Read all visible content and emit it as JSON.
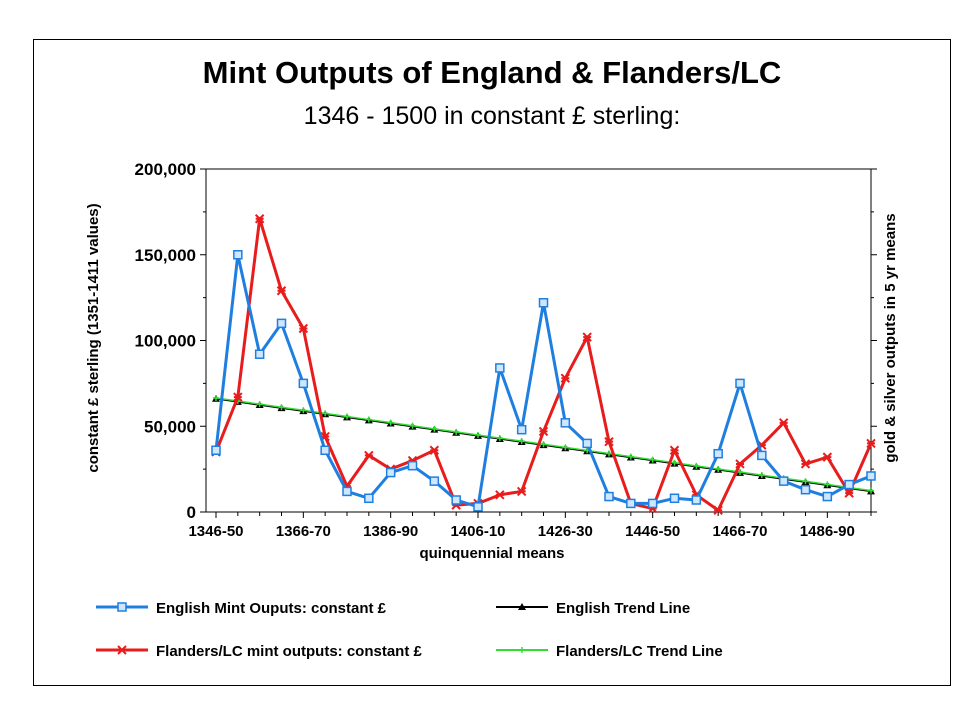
{
  "chart_data": {
    "type": "line",
    "title": "Mint Outputs of England & Flanders/LC",
    "subtitle": "1346 - 1500 in constant £ sterling:",
    "xlabel": "quinquennial means",
    "ylabel": "constant £ sterling (1351-1411 values)",
    "ylabel_right": "gold & silver outputs in 5 yr means",
    "ylim": [
      0,
      200000
    ],
    "yticks": [
      "0",
      "50,000",
      "100,000",
      "150,000",
      "200,000"
    ],
    "ytick_values": [
      0,
      50000,
      100000,
      150000,
      200000
    ],
    "x_tick_labels": [
      "1346-50",
      "1366-70",
      "1386-90",
      "1406-10",
      "1426-30",
      "1446-50",
      "1466-70",
      "1486-90"
    ],
    "x_tick_index": [
      0,
      4,
      8,
      12,
      16,
      20,
      24,
      28
    ],
    "grid": false,
    "legend_position": "bottom",
    "series": [
      {
        "name": "English Mint Ouputs: constant £",
        "color": "#1e7fe0",
        "marker": "square",
        "values": [
          36000,
          150000,
          92000,
          110000,
          75000,
          36000,
          12000,
          8000,
          23000,
          27000,
          18000,
          7000,
          3000,
          84000,
          48000,
          122000,
          52000,
          40000,
          9000,
          5000,
          5000,
          8000,
          7000,
          34000,
          75000,
          33000,
          18000,
          13000,
          9000,
          16000,
          21000
        ]
      },
      {
        "name": "English Trend Line",
        "color": "#000000",
        "marker": "triangle",
        "values": [
          66000,
          64200,
          62400,
          60600,
          58800,
          57000,
          55200,
          53400,
          51600,
          49800,
          48000,
          46200,
          44400,
          42600,
          40800,
          39000,
          37200,
          35400,
          33600,
          31800,
          30000,
          28200,
          26400,
          24600,
          22800,
          21000,
          19200,
          17400,
          15600,
          13800,
          12000
        ]
      },
      {
        "name": "Flanders/LC mint outputs: constant £",
        "color": "#e81c1c",
        "marker": "star",
        "values": [
          35000,
          67000,
          171000,
          129000,
          107000,
          44000,
          15000,
          33000,
          25000,
          30000,
          36000,
          4000,
          5000,
          10000,
          12000,
          47000,
          78000,
          102000,
          41000,
          5000,
          2000,
          36000,
          10000,
          1000,
          28000,
          39000,
          52000,
          28000,
          32000,
          11000,
          40000
        ]
      },
      {
        "name": "Flanders/LC Trend Line",
        "color": "#33dd33",
        "marker": "plus",
        "values": [
          66500,
          64700,
          62900,
          61100,
          59300,
          57500,
          55700,
          53900,
          52100,
          50300,
          48500,
          46700,
          44900,
          43100,
          41300,
          39500,
          37700,
          35900,
          34100,
          32300,
          30500,
          28700,
          26900,
          25100,
          23300,
          21500,
          19700,
          17900,
          16100,
          14300,
          12500
        ]
      }
    ]
  }
}
